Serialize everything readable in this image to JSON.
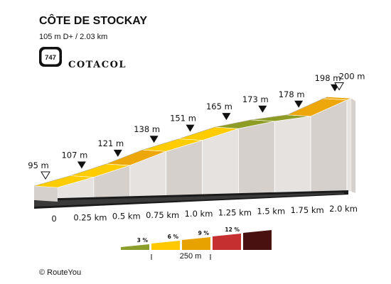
{
  "header": {
    "title": "CÔTE DE STOCKAY",
    "subtitle": "105 m D+ / 2.03 km",
    "badge_number": "747",
    "badge_brand": "COTACOL"
  },
  "footer": {
    "copyright": "© RouteYou"
  },
  "chart_data": {
    "type": "area",
    "x_unit": "km",
    "y_unit": "m",
    "distance_km": [
      0,
      0.25,
      0.5,
      0.75,
      1.0,
      1.25,
      1.5,
      1.75,
      2.0,
      2.03
    ],
    "elevation_m": [
      95,
      107,
      121,
      138,
      151,
      165,
      173,
      178,
      198,
      200
    ],
    "elevation_labels": [
      "95 m",
      "107 m",
      "121 m",
      "138 m",
      "151 m",
      "165 m",
      "173 m",
      "178 m",
      "198 m",
      "200 m"
    ],
    "x_tick_labels": [
      "0",
      "0.25 km",
      "0.5 km",
      "0.75 km",
      "1.0 km",
      "1.25 km",
      "1.5 km",
      "1.75 km",
      "2.0 km"
    ],
    "segment_grade_class": [
      "yellow",
      "yellow",
      "orange",
      "yellow",
      "yellow",
      "green",
      "green",
      "orange",
      "orange"
    ],
    "legend": {
      "items": [
        {
          "label": "3 %",
          "color": "#8c9e2c"
        },
        {
          "label": "6 %",
          "color": "#ffc800"
        },
        {
          "label": "9 %",
          "color": "#e8a200"
        },
        {
          "label": "12 %",
          "color": "#c62f2f"
        },
        {
          "label": "",
          "color": "#4a1111"
        }
      ],
      "scale_label": "250 m"
    },
    "colors": {
      "yellow": "#ffcc00",
      "orange": "#eea70a",
      "green": "#8c9c24",
      "side": "#e6e2df",
      "side_dark": "#d6d0cc",
      "base": "#1a1a1a"
    }
  }
}
